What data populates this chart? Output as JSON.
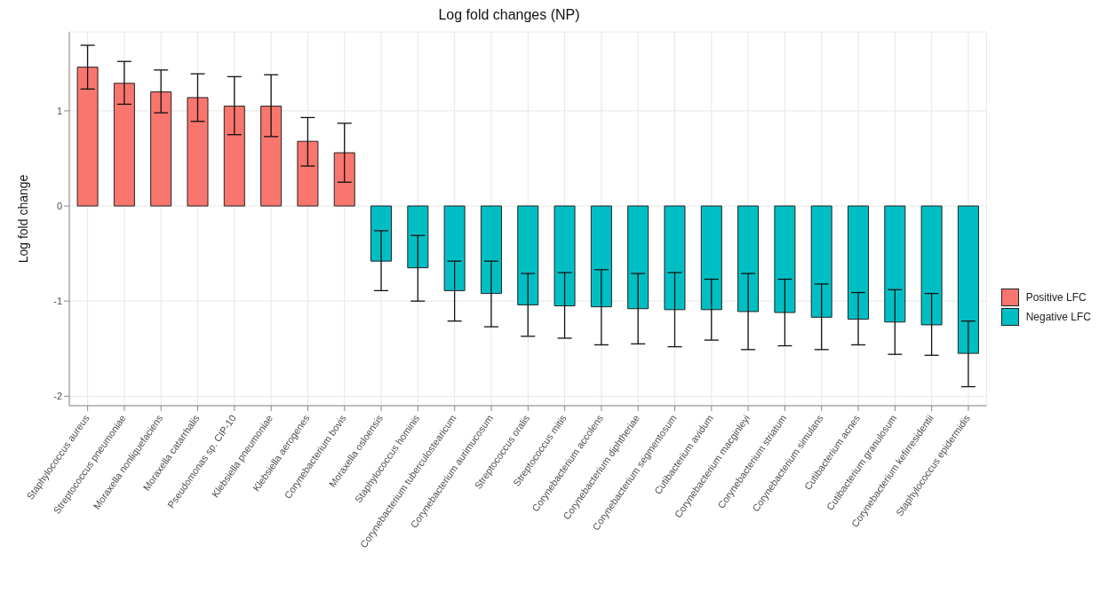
{
  "chart_data": {
    "type": "bar",
    "title": "Log fold changes (NP)",
    "ylabel": "Log fold change",
    "categories": [
      "Staphylococcus aureus",
      "Streptococcus pneumoniae",
      "Moraxella nonliquefaciens",
      "Moraxella catarrhalis",
      "Pseudomonas sp. CIP-10",
      "Klebsiella pneumoniae",
      "Klebsiella aerogenes",
      "Corynebacterium bovis",
      "Moraxella osloensis",
      "Staphylococcus hominis",
      "Corynebacterium tuberculostearicum",
      "Corynebacterium aurimucosum",
      "Streptococcus oralis",
      "Streptococcus mitis",
      "Corynebacterium accolens",
      "Corynebacterium diphtheriae",
      "Corynebacterium segmentosum",
      "Cutibacterium avidum",
      "Corynebacterium macginleyi",
      "Corynebacterium striatum",
      "Corynebacterium simulans",
      "Cutibacterium acnes",
      "Cutibacterium granulosum",
      "Corynebacterium kefirresidentii",
      "Staphylococcus epidermidis"
    ],
    "stacked": true,
    "series": [
      {
        "name": "Positive LFC",
        "color": "#f8766d",
        "values": [
          1.46,
          1.29,
          1.2,
          1.14,
          1.05,
          1.05,
          0.68,
          0.56,
          null,
          null,
          null,
          null,
          null,
          null,
          null,
          null,
          null,
          null,
          null,
          null,
          null,
          null,
          null,
          null,
          null
        ],
        "errors": [
          [
            1.23,
            1.69
          ],
          [
            1.07,
            1.52
          ],
          [
            0.98,
            1.43
          ],
          [
            0.89,
            1.39
          ],
          [
            0.75,
            1.36
          ],
          [
            0.73,
            1.38
          ],
          [
            0.42,
            0.93
          ],
          [
            0.25,
            0.87
          ],
          null,
          null,
          null,
          null,
          null,
          null,
          null,
          null,
          null,
          null,
          null,
          null,
          null,
          null,
          null,
          null,
          null
        ]
      },
      {
        "name": "Negative LFC",
        "color": "#00bfc4",
        "values": [
          null,
          null,
          null,
          null,
          null,
          null,
          null,
          null,
          -0.58,
          -0.65,
          -0.89,
          -0.92,
          -1.04,
          -1.05,
          -1.06,
          -1.08,
          -1.09,
          -1.09,
          -1.11,
          -1.12,
          -1.17,
          -1.19,
          -1.22,
          -1.25,
          -1.55
        ],
        "errors": [
          null,
          null,
          null,
          null,
          null,
          null,
          null,
          null,
          [
            -0.89,
            -0.26
          ],
          [
            -1.0,
            -0.31
          ],
          [
            -1.21,
            -0.58
          ],
          [
            -1.27,
            -0.58
          ],
          [
            -1.37,
            -0.71
          ],
          [
            -1.39,
            -0.7
          ],
          [
            -1.46,
            -0.67
          ],
          [
            -1.45,
            -0.71
          ],
          [
            -1.48,
            -0.7
          ],
          [
            -1.41,
            -0.77
          ],
          [
            -1.51,
            -0.71
          ],
          [
            -1.47,
            -0.77
          ],
          [
            -1.51,
            -0.82
          ],
          [
            -1.46,
            -0.91
          ],
          [
            -1.56,
            -0.88
          ],
          [
            -1.57,
            -0.92
          ],
          [
            -1.9,
            -1.21
          ]
        ]
      }
    ],
    "ylim": [
      -2.1,
      1.83
    ],
    "yticks": [
      -2,
      -1,
      0,
      1
    ],
    "grid": true,
    "legend": "right"
  }
}
